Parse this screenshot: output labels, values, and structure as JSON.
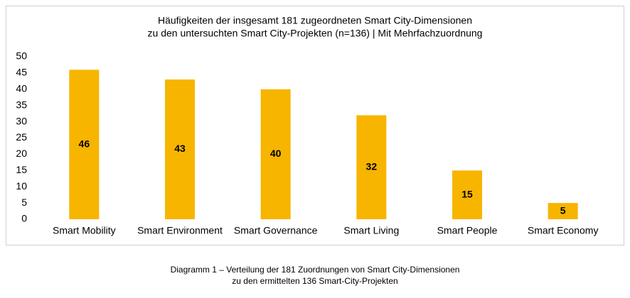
{
  "chart_data": {
    "type": "bar",
    "title": [
      "Häufigkeiten der insgesamt 181 zugeordneten Smart City-Dimensionen",
      "zu den untersuchten Smart City-Projekten (n=136) | Mit Mehrfachzuordnung"
    ],
    "categories": [
      "Smart Mobility",
      "Smart Environment",
      "Smart Governance",
      "Smart Living",
      "Smart People",
      "Smart Economy"
    ],
    "values": [
      46,
      43,
      40,
      32,
      15,
      5
    ],
    "color": "#f7b500",
    "ylim": [
      0,
      50
    ],
    "yticks": [
      0,
      5,
      10,
      15,
      20,
      25,
      30,
      35,
      40,
      45,
      50
    ],
    "grid": false
  },
  "caption": [
    "Diagramm 1 – Verteilung der 181 Zuordnungen von Smart City-Dimensionen",
    "zu den ermittelten 136 Smart-City-Projekten"
  ]
}
